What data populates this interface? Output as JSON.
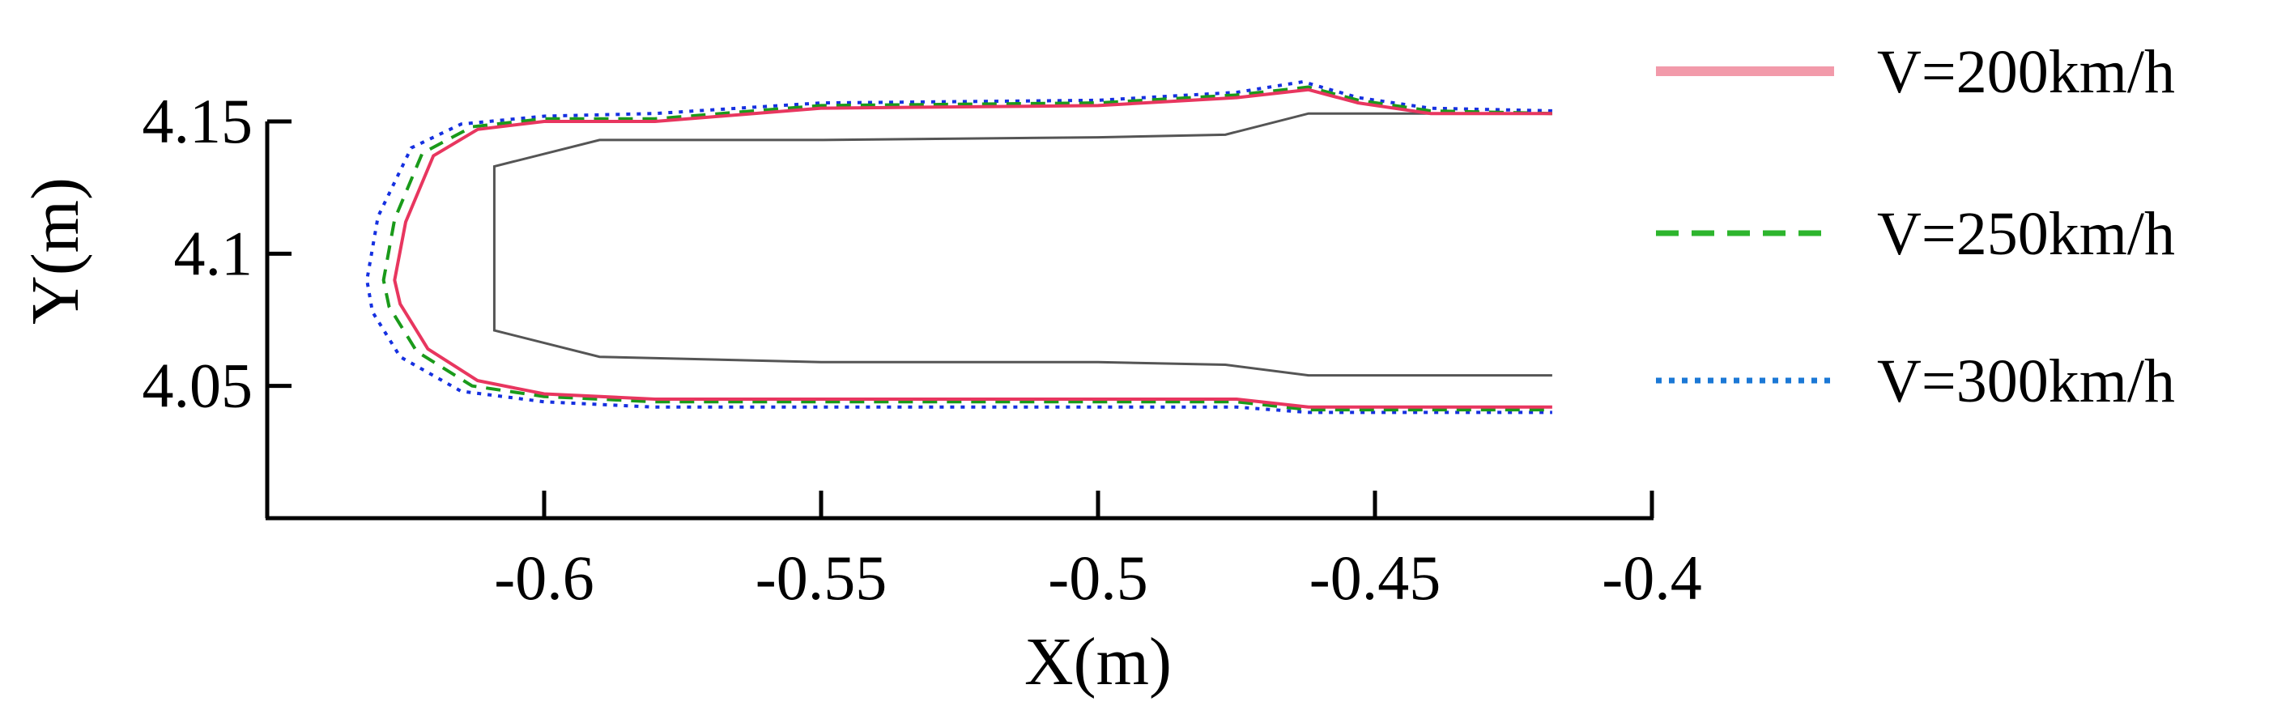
{
  "chart_data": {
    "type": "line",
    "xlabel": "X(m)",
    "ylabel": "Y(m)",
    "xlim": [
      -0.65,
      -0.4
    ],
    "ylim": [
      4.0,
      4.15
    ],
    "x_ticks": [
      -0.6,
      -0.55,
      -0.5,
      -0.45,
      -0.4
    ],
    "x_tick_labels": [
      "-0.6",
      "-0.55",
      "-0.5",
      "-0.45",
      "-0.4"
    ],
    "y_ticks": [
      4.05,
      4.1,
      4.15
    ],
    "y_tick_labels": [
      "4.05",
      "4.1",
      "4.15"
    ],
    "grid": false,
    "legend_position": "right",
    "reference_outline": {
      "color": "#555555",
      "x": [
        -0.418,
        -0.462,
        -0.477,
        -0.5,
        -0.55,
        -0.59,
        -0.609,
        -0.609,
        -0.59,
        -0.55,
        -0.5,
        -0.477,
        -0.462,
        -0.418
      ],
      "y": [
        4.153,
        4.153,
        4.145,
        4.144,
        4.143,
        4.143,
        4.133,
        4.071,
        4.061,
        4.059,
        4.059,
        4.058,
        4.054,
        4.054
      ]
    },
    "series": [
      {
        "name": "V=200km/h",
        "color": "#e8365f",
        "legend_color": "#f29aaa",
        "dash": "solid",
        "x": [
          -0.418,
          -0.44,
          -0.453,
          -0.462,
          -0.475,
          -0.5,
          -0.55,
          -0.58,
          -0.6,
          -0.612,
          -0.62,
          -0.625,
          -0.627,
          -0.626,
          -0.621,
          -0.612,
          -0.6,
          -0.58,
          -0.55,
          -0.5,
          -0.475,
          -0.462,
          -0.418
        ],
        "y": [
          4.153,
          4.153,
          4.157,
          4.162,
          4.159,
          4.156,
          4.155,
          4.15,
          4.15,
          4.147,
          4.137,
          4.112,
          4.09,
          4.081,
          4.064,
          4.052,
          4.047,
          4.045,
          4.045,
          4.045,
          4.045,
          4.042,
          4.042
        ]
      },
      {
        "name": "V=250km/h",
        "color": "#1a9a1a",
        "legend_color": "#2db52d",
        "dash": "dashed",
        "x": [
          -0.418,
          -0.44,
          -0.453,
          -0.462,
          -0.475,
          -0.5,
          -0.55,
          -0.58,
          -0.6,
          -0.613,
          -0.622,
          -0.627,
          -0.629,
          -0.628,
          -0.623,
          -0.613,
          -0.6,
          -0.58,
          -0.55,
          -0.5,
          -0.475,
          -0.462,
          -0.418
        ],
        "y": [
          4.153,
          4.154,
          4.158,
          4.163,
          4.16,
          4.157,
          4.156,
          4.151,
          4.151,
          4.148,
          4.138,
          4.113,
          4.09,
          4.08,
          4.063,
          4.05,
          4.046,
          4.044,
          4.044,
          4.044,
          4.044,
          4.041,
          4.041
        ]
      },
      {
        "name": "V=300km/h",
        "color": "#1530e0",
        "legend_color": "#1b78d6",
        "dash": "dotted",
        "x": [
          -0.418,
          -0.44,
          -0.453,
          -0.463,
          -0.475,
          -0.5,
          -0.55,
          -0.58,
          -0.6,
          -0.615,
          -0.624,
          -0.63,
          -0.632,
          -0.631,
          -0.626,
          -0.615,
          -0.6,
          -0.58,
          -0.55,
          -0.5,
          -0.475,
          -0.462,
          -0.418
        ],
        "y": [
          4.154,
          4.155,
          4.159,
          4.165,
          4.161,
          4.158,
          4.157,
          4.153,
          4.152,
          4.149,
          4.14,
          4.114,
          4.09,
          4.078,
          4.061,
          4.048,
          4.044,
          4.042,
          4.042,
          4.042,
          4.042,
          4.04,
          4.04
        ]
      }
    ]
  }
}
